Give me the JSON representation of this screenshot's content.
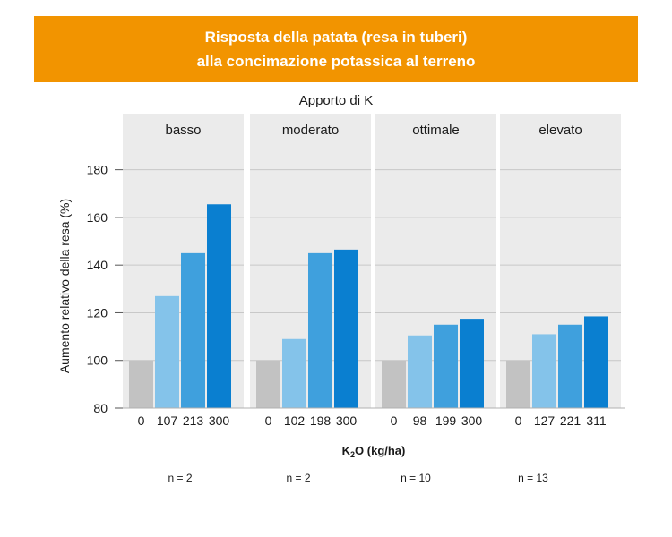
{
  "title": {
    "line1": "Risposta della patata (resa in tuberi)",
    "line2": "alla concimazione potassica al terreno"
  },
  "colors": {
    "banner": "#f29400",
    "panel_bg": "#ebebeb",
    "grid": "#c8c8c8",
    "bars": [
      "#c2c2c2",
      "#84c3ea",
      "#3fa0dd",
      "#0a7fd0"
    ]
  },
  "chart_data": {
    "type": "bar",
    "facet_title": "Apporto di K",
    "ylabel": "Aumento relativo della resa (%)",
    "xlabel_main": "K",
    "xlabel_sub": "2",
    "xlabel_rest": "O (kg/ha)",
    "ylim": [
      80,
      190
    ],
    "yticks": [
      80,
      100,
      120,
      140,
      160,
      180
    ],
    "panels": [
      {
        "label": "basso",
        "categories": [
          "0",
          "107",
          "213",
          "300"
        ],
        "values": [
          100,
          127,
          145,
          165.5
        ],
        "n": "n = 2"
      },
      {
        "label": "moderato",
        "categories": [
          "0",
          "102",
          "198",
          "300"
        ],
        "values": [
          100,
          109,
          145,
          146.5
        ],
        "n": "n = 2"
      },
      {
        "label": "ottimale",
        "categories": [
          "0",
          "98",
          "199",
          "300"
        ],
        "values": [
          100,
          110.5,
          115,
          117.5
        ],
        "n": "n = 10"
      },
      {
        "label": "elevato",
        "categories": [
          "0",
          "127",
          "221",
          "311"
        ],
        "values": [
          100,
          111,
          115,
          118.5
        ],
        "n": "n = 13"
      }
    ]
  }
}
